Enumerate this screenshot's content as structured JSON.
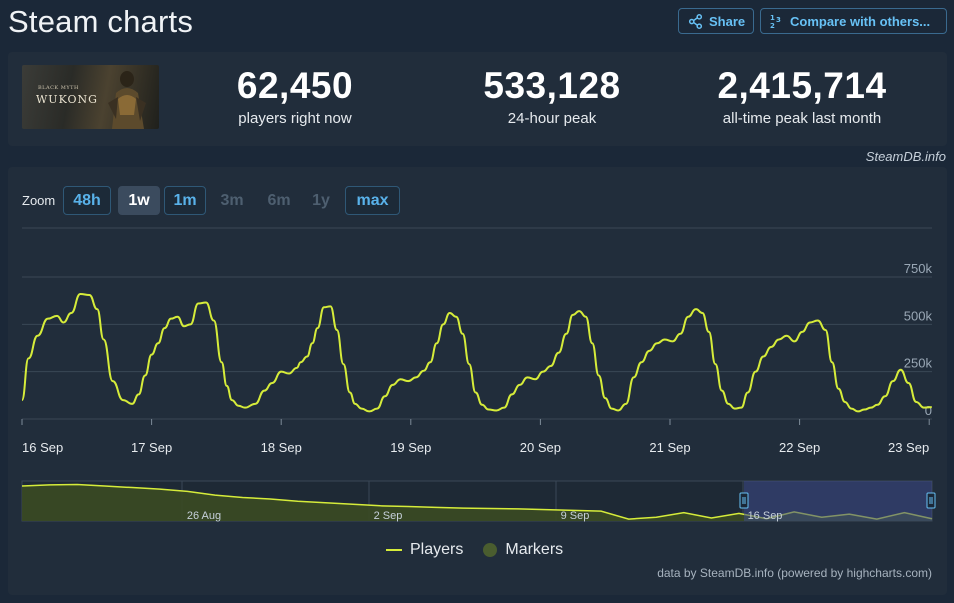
{
  "header": {
    "title": "Steam charts",
    "share_label": "Share",
    "compare_label": "Compare with others..."
  },
  "game": {
    "thumb_small": "BLACK MYTH",
    "thumb_big": "WUKONG"
  },
  "stats": [
    {
      "value": "62,450",
      "label": "players right now"
    },
    {
      "value": "533,128",
      "label": "24-hour peak"
    },
    {
      "value": "2,415,714",
      "label": "all-time peak last month"
    }
  ],
  "credit_top": "SteamDB.info",
  "zoom": {
    "label": "Zoom",
    "buttons": [
      {
        "label": "48h",
        "state": "enabled"
      },
      {
        "label": "1w",
        "state": "active"
      },
      {
        "label": "1m",
        "state": "enabled"
      },
      {
        "label": "3m",
        "state": "disabled"
      },
      {
        "label": "6m",
        "state": "disabled"
      },
      {
        "label": "1y",
        "state": "disabled"
      },
      {
        "label": "max",
        "state": "enabled"
      }
    ]
  },
  "colors": {
    "line": "#d6ec3a",
    "grid": "#3a4756",
    "navigator_fill": "#3a4a22",
    "navigator_mask": "#3e4a8a"
  },
  "chart_data": {
    "type": "line",
    "y_ticks": [
      "750k",
      "500k",
      "250k",
      "0"
    ],
    "ylim": [
      0,
      750000
    ],
    "x_ticks": [
      "16 Sep",
      "17 Sep",
      "18 Sep",
      "19 Sep",
      "20 Sep",
      "21 Sep",
      "22 Sep",
      "23 Sep"
    ],
    "series": [
      {
        "name": "Players",
        "x_days": [
          0,
          0.05,
          0.12,
          0.2,
          0.27,
          0.32,
          0.38,
          0.45,
          0.52,
          0.58,
          0.63,
          0.7,
          0.78,
          0.85,
          0.9,
          0.95,
          1.0,
          1.05,
          1.1,
          1.15,
          1.2,
          1.25,
          1.3,
          1.36,
          1.42,
          1.48,
          1.54,
          1.58,
          1.62,
          1.67,
          1.72,
          1.8,
          1.87,
          1.93,
          2.0,
          2.06,
          2.12,
          2.15,
          2.2,
          2.24,
          2.28,
          2.33,
          2.38,
          2.43,
          2.48,
          2.53,
          2.57,
          2.62,
          2.68,
          2.74,
          2.8,
          2.86,
          2.92,
          2.98,
          3.04,
          3.1,
          3.15,
          3.2,
          3.25,
          3.3,
          3.35,
          3.4,
          3.45,
          3.5,
          3.55,
          3.6,
          3.66,
          3.72,
          3.78,
          3.84,
          3.9,
          3.96,
          4.02,
          4.08,
          4.14,
          4.2,
          4.25,
          4.3,
          4.35,
          4.4,
          4.45,
          4.5,
          4.55,
          4.6,
          4.66,
          4.72,
          4.78,
          4.84,
          4.9,
          4.96,
          5.02,
          5.08,
          5.14,
          5.2,
          5.25,
          5.3,
          5.35,
          5.4,
          5.45,
          5.5,
          5.55,
          5.6,
          5.66,
          5.72,
          5.78,
          5.84,
          5.9,
          5.96,
          6.02,
          6.08,
          6.14,
          6.2,
          6.25,
          6.3,
          6.35,
          6.4,
          6.45,
          6.5,
          6.55,
          6.6,
          6.66,
          6.72,
          6.78,
          6.84,
          6.9,
          6.96,
          7.02
        ],
        "values": [
          100000,
          320000,
          440000,
          530000,
          545000,
          510000,
          560000,
          660000,
          655000,
          580000,
          420000,
          200000,
          100000,
          80000,
          130000,
          230000,
          340000,
          400000,
          480000,
          530000,
          540000,
          490000,
          500000,
          610000,
          615000,
          520000,
          300000,
          175000,
          100000,
          70000,
          60000,
          80000,
          150000,
          190000,
          250000,
          240000,
          270000,
          300000,
          330000,
          400000,
          480000,
          590000,
          595000,
          470000,
          290000,
          140000,
          80000,
          55000,
          40000,
          55000,
          120000,
          180000,
          210000,
          200000,
          220000,
          255000,
          300000,
          400000,
          500000,
          560000,
          540000,
          450000,
          290000,
          140000,
          75000,
          50000,
          45000,
          60000,
          130000,
          180000,
          220000,
          210000,
          250000,
          280000,
          350000,
          450000,
          550000,
          570000,
          540000,
          400000,
          230000,
          110000,
          55000,
          45000,
          80000,
          220000,
          300000,
          360000,
          400000,
          420000,
          410000,
          450000,
          540000,
          580000,
          560000,
          460000,
          290000,
          150000,
          80000,
          55000,
          60000,
          140000,
          250000,
          330000,
          380000,
          420000,
          440000,
          410000,
          460000,
          510000,
          520000,
          470000,
          300000,
          160000,
          90000,
          55000,
          40000,
          50000,
          60000,
          75000,
          120000,
          200000,
          260000,
          190000,
          90000,
          60000,
          62450
        ]
      }
    ],
    "navigator": {
      "x_ticks": [
        "26 Aug",
        "2 Sep",
        "9 Sep",
        "16 Sep"
      ],
      "series_name": "Players",
      "values": [
        0.92,
        0.95,
        0.96,
        0.92,
        0.88,
        0.84,
        0.78,
        0.68,
        0.62,
        0.58,
        0.52,
        0.48,
        0.44,
        0.4,
        0.38,
        0.36,
        0.34,
        0.33,
        0.32,
        0.3,
        0.28,
        0.26,
        0.05,
        0.1,
        0.22,
        0.08,
        0.2,
        0.06,
        0.24,
        0.1,
        0.18,
        0.05,
        0.22,
        0.06
      ]
    },
    "legend": [
      "Players",
      "Markers"
    ],
    "grid": true
  },
  "credit_bottom": "data by SteamDB.info (powered by highcharts.com)"
}
